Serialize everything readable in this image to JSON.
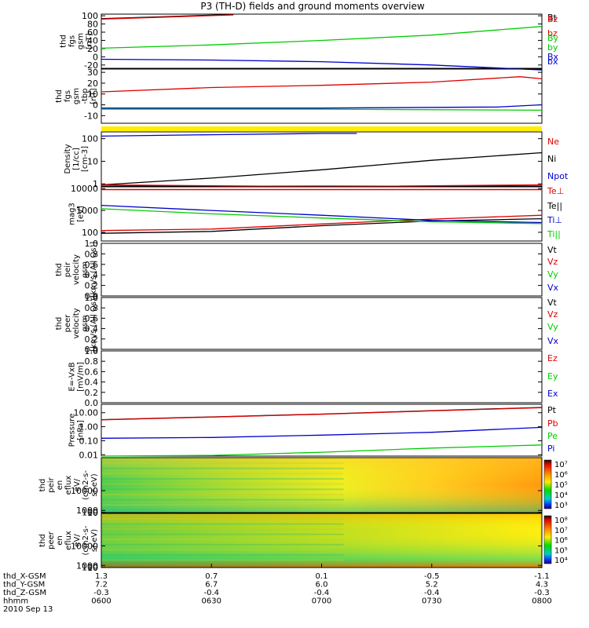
{
  "title": "P3 (TH-D) fields and ground moments overview",
  "colors": {
    "red": "#dd0000",
    "green": "#00cc00",
    "blue": "#0000cc",
    "black": "#000000",
    "yellow": "#ffee00"
  },
  "xaxis": {
    "ticks": [
      "0600",
      "0630",
      "0700",
      "0730",
      "0800"
    ],
    "rows": [
      {
        "label": "thd_X-GSM",
        "values": [
          "1.3",
          "0.7",
          "0.1",
          "-0.5",
          "-1.1"
        ]
      },
      {
        "label": "thd_Y-GSM",
        "values": [
          "7.2",
          "6.7",
          "6.0",
          "5.2",
          "4.3"
        ]
      },
      {
        "label": "thd_Z-GSM",
        "values": [
          "-0.3",
          "-0.4",
          "-0.4",
          "-0.4",
          "-0.3"
        ]
      },
      {
        "label": "hhmm",
        "values": [
          "0600",
          "0630",
          "0700",
          "0730",
          "0800"
        ]
      }
    ],
    "date": "2010 Sep 13"
  },
  "chart_data": [
    {
      "id": "fgs",
      "type": "line",
      "ylabel": [
        "thd",
        "fgs",
        "gsm",
        "[nT]"
      ],
      "yticks": [
        "100",
        "80",
        "60",
        "40",
        "20",
        "0",
        "-20"
      ],
      "ylim": [
        -28,
        104
      ],
      "legend": [
        {
          "text": "Bt",
          "color": "black"
        },
        {
          "text": "bz",
          "color": "red"
        },
        {
          "text": "by",
          "color": "green"
        },
        {
          "text": "bx",
          "color": "blue"
        }
      ],
      "series": [
        {
          "name": "Bt",
          "color": "black",
          "x": [
            0,
            0.15,
            0.3
          ],
          "y": [
            93,
            98,
            103
          ]
        },
        {
          "name": "bz",
          "color": "red",
          "x": [
            0,
            0.15,
            0.3
          ],
          "y": [
            92,
            97,
            102
          ]
        },
        {
          "name": "by",
          "color": "green",
          "x": [
            0,
            0.25,
            0.5,
            0.75,
            1
          ],
          "y": [
            21,
            29,
            40,
            53,
            74
          ]
        },
        {
          "name": "bx",
          "color": "blue",
          "x": [
            0,
            0.25,
            0.5,
            0.75,
            1
          ],
          "y": [
            -6,
            -8,
            -12,
            -20,
            -32
          ]
        }
      ]
    },
    {
      "id": "fgl",
      "type": "line",
      "ylabel": [
        "thd",
        "fgs",
        "gsm",
        "-tbp",
        "[nT]"
      ],
      "yticks": [
        "30",
        "20",
        "10",
        "0",
        "-10"
      ],
      "ylim": [
        -17,
        33
      ],
      "legend": [
        {
          "text": "Bz",
          "color": "red"
        },
        {
          "text": "By",
          "color": "green"
        },
        {
          "text": "Bx",
          "color": "blue"
        }
      ],
      "series": [
        {
          "name": "Bz",
          "color": "red",
          "x": [
            0,
            0.25,
            0.5,
            0.75,
            0.95,
            1
          ],
          "y": [
            12,
            16,
            18,
            21,
            26,
            24
          ]
        },
        {
          "name": "By",
          "color": "green",
          "x": [
            0,
            0.5,
            1
          ],
          "y": [
            -4,
            -4,
            -5
          ]
        },
        {
          "name": "Bx",
          "color": "blue",
          "x": [
            0,
            0.5,
            0.9,
            1
          ],
          "y": [
            -3,
            -3,
            -2,
            0
          ]
        }
      ]
    },
    {
      "id": "density",
      "type": "line",
      "log": true,
      "ylabel": [
        "Density",
        "[1/cc]",
        "[cm-3]"
      ],
      "yticks": [
        "100",
        "10",
        "1"
      ],
      "ylim": [
        0.8,
        200
      ],
      "legend": [
        {
          "text": "Ne",
          "color": "red"
        },
        {
          "text": "Ni",
          "color": "black"
        },
        {
          "text": "Npot",
          "color": "blue"
        }
      ],
      "series": [
        {
          "name": "Ni",
          "color": "black",
          "x": [
            0,
            0.25,
            0.5,
            0.75,
            1
          ],
          "y": [
            0.9,
            1.8,
            4.2,
            11,
            24
          ]
        },
        {
          "name": "Ne",
          "color": "red",
          "x": [
            0,
            0.5,
            1
          ],
          "y": [
            0.9,
            0.75,
            0.9
          ]
        },
        {
          "name": "Npot",
          "color": "blue",
          "x": [
            0,
            0.25,
            0.5,
            0.58
          ],
          "y": [
            130,
            150,
            170,
            170
          ]
        }
      ]
    },
    {
      "id": "temp",
      "type": "line",
      "log": true,
      "ylabel": [
        "mag3",
        "[eV]"
      ],
      "yticks": [
        "10000",
        "1000",
        "100"
      ],
      "ylim": [
        40,
        12000
      ],
      "legend": [
        {
          "text": "Te⊥",
          "color": "red"
        },
        {
          "text": "Te||",
          "color": "black"
        },
        {
          "text": "Ti⊥",
          "color": "blue"
        },
        {
          "text": "Ti||",
          "color": "green"
        }
      ],
      "series": [
        {
          "name": "Te⊥",
          "color": "red",
          "x": [
            0,
            0.25,
            0.5,
            0.75,
            1
          ],
          "y": [
            120,
            140,
            240,
            400,
            600
          ]
        },
        {
          "name": "Te||",
          "color": "black",
          "x": [
            0,
            0.25,
            0.5,
            0.75,
            1
          ],
          "y": [
            90,
            110,
            200,
            330,
            420
          ]
        },
        {
          "name": "Ti⊥",
          "color": "blue",
          "x": [
            0,
            0.25,
            0.5,
            0.75,
            1
          ],
          "y": [
            1700,
            1000,
            600,
            350,
            280
          ]
        },
        {
          "name": "Ti||",
          "color": "green",
          "x": [
            0,
            0.25,
            0.5,
            0.75,
            1
          ],
          "y": [
            1200,
            700,
            450,
            300,
            250
          ]
        }
      ],
      "topline": {
        "color": "red",
        "y": 9000
      }
    },
    {
      "id": "peir_vel",
      "type": "line",
      "ylabel": [
        "thd",
        "peir",
        "velocity",
        "gsm",
        "[km/s (All Qs)]"
      ],
      "yticks": [
        "1.0",
        "0.8",
        "0.6",
        "0.4",
        "0.2",
        "0.0"
      ],
      "ylim": [
        0,
        1
      ],
      "legend": [
        {
          "text": "Vt",
          "color": "black"
        },
        {
          "text": "Vz",
          "color": "red"
        },
        {
          "text": "Vy",
          "color": "green"
        },
        {
          "text": "Vx",
          "color": "blue"
        }
      ],
      "series": []
    },
    {
      "id": "peer_vel",
      "type": "line",
      "ylabel": [
        "thd",
        "peer",
        "velocity",
        "gsm",
        "[km/s (All Qs)]"
      ],
      "yticks": [
        "1.0",
        "0.8",
        "0.6",
        "0.4",
        "0.2",
        "0.0"
      ],
      "ylim": [
        0,
        1
      ],
      "legend": [
        {
          "text": "Vt",
          "color": "black"
        },
        {
          "text": "Vz",
          "color": "red"
        },
        {
          "text": "Vy",
          "color": "green"
        },
        {
          "text": "Vx",
          "color": "blue"
        }
      ],
      "series": []
    },
    {
      "id": "efield",
      "type": "line",
      "ylabel": [
        "E=-VxB",
        "[mV/m]"
      ],
      "yticks": [
        "1.0",
        "0.8",
        "0.6",
        "0.4",
        "0.2",
        "0.0"
      ],
      "ylim": [
        0,
        1
      ],
      "legend": [
        {
          "text": "Ez",
          "color": "red"
        },
        {
          "text": "Ey",
          "color": "green"
        },
        {
          "text": "Ex",
          "color": "blue"
        }
      ],
      "series": []
    },
    {
      "id": "pressure",
      "type": "line",
      "log": true,
      "ylabel": [
        "Pressure",
        "[nPa]"
      ],
      "yticks": [
        "10.00",
        "1.00",
        "0.10",
        "0.01"
      ],
      "ylim": [
        0.008,
        40
      ],
      "legend": [
        {
          "text": "Pt",
          "color": "black"
        },
        {
          "text": "Pb",
          "color": "red"
        },
        {
          "text": "Pe",
          "color": "green"
        },
        {
          "text": "Pi",
          "color": "blue"
        }
      ],
      "series": [
        {
          "name": "Pt",
          "color": "black",
          "x": [
            0,
            0.25,
            0.5,
            0.75,
            1
          ],
          "y": [
            3.2,
            5,
            8,
            14,
            24
          ]
        },
        {
          "name": "Pb",
          "color": "red",
          "x": [
            0,
            0.25,
            0.5,
            0.75,
            1
          ],
          "y": [
            3.1,
            4.9,
            7.8,
            13.5,
            23
          ]
        },
        {
          "name": "Pi",
          "color": "blue",
          "x": [
            0,
            0.25,
            0.5,
            0.75,
            1
          ],
          "y": [
            0.15,
            0.17,
            0.25,
            0.4,
            0.9
          ]
        },
        {
          "name": "Pe",
          "color": "green",
          "x": [
            0,
            0.25,
            0.5,
            0.75,
            1
          ],
          "y": [
            0.008,
            0.009,
            0.015,
            0.03,
            0.05
          ]
        }
      ]
    },
    {
      "id": "peir_en",
      "type": "heatmap",
      "ylabel": [
        "thd",
        "peir",
        "en",
        "eflux",
        "eV/",
        "(cm2-s-",
        "sr-eV)"
      ],
      "yticks": [
        "10000",
        "1000",
        "100",
        "10"
      ],
      "ylim": [
        6,
        25000
      ],
      "colorbar": {
        "labels": [
          "10⁷",
          "10⁶",
          "10⁵",
          "10⁴",
          "10³"
        ]
      }
    },
    {
      "id": "peer_en",
      "type": "heatmap",
      "ylabel": [
        "thd",
        "peer",
        "en",
        "eflux",
        "eV/",
        "(cm2-s-",
        "sr-eV)"
      ],
      "yticks": [
        "10000",
        "1000",
        "100",
        "10"
      ],
      "ylim": [
        6,
        25000
      ],
      "colorbar": {
        "labels": [
          "10⁸",
          "10⁷",
          "10⁶",
          "10⁵",
          "10⁴"
        ]
      }
    }
  ]
}
